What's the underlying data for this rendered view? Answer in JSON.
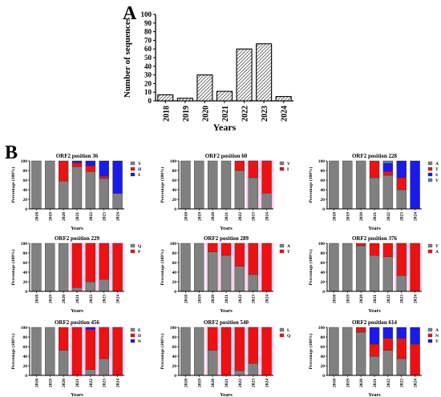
{
  "panel_a": {
    "label": "A",
    "chart_data": {
      "type": "bar",
      "categories": [
        "2018",
        "2019",
        "2020",
        "2021",
        "2022",
        "2023",
        "2024"
      ],
      "values": [
        7,
        3,
        30,
        11,
        60,
        66,
        5
      ],
      "xlabel": "Years",
      "ylabel": "Number of sequences",
      "ylim": [
        0,
        100
      ],
      "yticks": [
        "0",
        "10",
        "20",
        "30",
        "40",
        "50",
        "60",
        "70",
        "80",
        "90",
        "100"
      ],
      "fill": "hatched gray"
    }
  },
  "panel_b": {
    "label": "B",
    "chart_data": [
      {
        "type": "bar",
        "title": "ORF2 position 36",
        "xlabel": "Years",
        "ylabel": "Percentage (100%)",
        "categories": [
          "2018",
          "2019",
          "2020",
          "2021",
          "2022",
          "2023",
          "2024"
        ],
        "yticks": [
          "0",
          "20",
          "40",
          "60",
          "80",
          "100"
        ],
        "ylim": [
          0,
          100
        ],
        "highlight": [],
        "series": [
          {
            "name": "Y",
            "color": "#808080",
            "values": [
              100,
              100,
              58,
              88,
              78,
              63,
              32
            ]
          },
          {
            "name": "H",
            "color": "#ee1111",
            "values": [
              0,
              0,
              42,
              8,
              12,
              5,
              0
            ]
          },
          {
            "name": "S",
            "color": "#1a1aee",
            "values": [
              0,
              0,
              0,
              4,
              10,
              32,
              68
            ]
          }
        ]
      },
      {
        "type": "bar",
        "title": "ORF2 position 60",
        "xlabel": "Years",
        "ylabel": "Percentage (100%)",
        "categories": [
          "2018",
          "2019",
          "2020",
          "2021",
          "2022",
          "2023",
          "2024"
        ],
        "yticks": [
          "0",
          "20",
          "40",
          "60",
          "80",
          "100"
        ],
        "ylim": [
          0,
          100
        ],
        "highlight": [
          [
            5,
            6
          ]
        ],
        "series": [
          {
            "name": "V",
            "color": "#808080",
            "values": [
              100,
              100,
              100,
              100,
              80,
              65,
              33
            ]
          },
          {
            "name": "I",
            "color": "#ee1111",
            "values": [
              0,
              0,
              0,
              0,
              20,
              35,
              67
            ]
          }
        ]
      },
      {
        "type": "bar",
        "title": "ORF2 position 228",
        "xlabel": "Years",
        "ylabel": "Percentage (100%)",
        "categories": [
          "2018",
          "2019",
          "2020",
          "2021",
          "2022",
          "2023",
          "2024"
        ],
        "yticks": [
          "0",
          "20",
          "40",
          "60",
          "80",
          "100"
        ],
        "ylim": [
          0,
          100
        ],
        "highlight": [],
        "series": [
          {
            "name": "A",
            "color": "#808080",
            "values": [
              100,
              100,
              100,
              65,
              70,
              40,
              0
            ]
          },
          {
            "name": "T",
            "color": "#ee1111",
            "values": [
              0,
              0,
              0,
              35,
              8,
              25,
              0
            ]
          },
          {
            "name": "S",
            "color": "#1a1aee",
            "values": [
              0,
              0,
              0,
              0,
              17,
              35,
              100
            ]
          },
          {
            "name": "V",
            "color": "#4f81bd",
            "values": [
              0,
              0,
              0,
              0,
              5,
              0,
              0
            ]
          }
        ]
      },
      {
        "type": "bar",
        "title": "ORF2 position 229",
        "xlabel": "Years",
        "ylabel": "Percentage (100%)",
        "categories": [
          "2018",
          "2019",
          "2020",
          "2021",
          "2022",
          "2023",
          "2024"
        ],
        "yticks": [
          "0",
          "20",
          "40",
          "60",
          "80",
          "100"
        ],
        "ylim": [
          0,
          100
        ],
        "highlight": [
          [
            3,
            6
          ]
        ],
        "series": [
          {
            "name": "Q",
            "color": "#808080",
            "values": [
              100,
              100,
              100,
              8,
              20,
              25,
              0
            ]
          },
          {
            "name": "P",
            "color": "#ee1111",
            "values": [
              0,
              0,
              0,
              92,
              80,
              75,
              100
            ]
          }
        ]
      },
      {
        "type": "bar",
        "title": "ORF2 position 289",
        "xlabel": "Years",
        "ylabel": "Percentage (100%)",
        "categories": [
          "2018",
          "2019",
          "2020",
          "2021",
          "2022",
          "2023",
          "2024"
        ],
        "yticks": [
          "0",
          "20",
          "40",
          "60",
          "80",
          "100"
        ],
        "ylim": [
          0,
          100
        ],
        "highlight": [
          [
            2,
            6
          ]
        ],
        "series": [
          {
            "name": "A",
            "color": "#808080",
            "values": [
              100,
              100,
              82,
              75,
              52,
              35,
              0
            ]
          },
          {
            "name": "T",
            "color": "#ee1111",
            "values": [
              0,
              0,
              18,
              25,
              48,
              65,
              100
            ]
          }
        ]
      },
      {
        "type": "bar",
        "title": "ORF2 position 376",
        "xlabel": "Years",
        "ylabel": "Percentage (100%)",
        "categories": [
          "2018",
          "2019",
          "2020",
          "2021",
          "2022",
          "2023",
          "2024"
        ],
        "yticks": [
          "0",
          "20",
          "40",
          "60",
          "80",
          "100"
        ],
        "ylim": [
          0,
          100
        ],
        "highlight": [
          [
            5,
            6
          ]
        ],
        "series": [
          {
            "name": "T",
            "color": "#808080",
            "values": [
              100,
              100,
              95,
              75,
              72,
              33,
              0
            ]
          },
          {
            "name": "A",
            "color": "#ee1111",
            "values": [
              0,
              0,
              5,
              25,
              28,
              67,
              100
            ]
          }
        ]
      },
      {
        "type": "bar",
        "title": "ORF2 position 456",
        "xlabel": "Years",
        "ylabel": "Percentage (100%)",
        "categories": [
          "2018",
          "2019",
          "2020",
          "2021",
          "2022",
          "2023",
          "2024"
        ],
        "yticks": [
          "0",
          "20",
          "40",
          "60",
          "80",
          "100"
        ],
        "ylim": [
          0,
          100
        ],
        "highlight": [
          [
            3,
            6
          ]
        ],
        "series": [
          {
            "name": "E",
            "color": "#808080",
            "values": [
              100,
              100,
              52,
              0,
              12,
              35,
              0
            ]
          },
          {
            "name": "D",
            "color": "#ee1111",
            "values": [
              0,
              0,
              48,
              100,
              84,
              65,
              100
            ]
          },
          {
            "name": "N",
            "color": "#1a1aee",
            "values": [
              0,
              0,
              0,
              0,
              4,
              0,
              0
            ]
          }
        ]
      },
      {
        "type": "bar",
        "title": "ORF2 position 540",
        "xlabel": "Years",
        "ylabel": "Percentage (100%)",
        "categories": [
          "2018",
          "2019",
          "2020",
          "2021",
          "2022",
          "2023",
          "2024"
        ],
        "yticks": [
          "0",
          "20",
          "40",
          "60",
          "80",
          "100"
        ],
        "ylim": [
          0,
          100
        ],
        "highlight": [
          [
            2,
            6
          ]
        ],
        "series": [
          {
            "name": "L",
            "color": "#808080",
            "values": [
              100,
              100,
              52,
              0,
              10,
              25,
              0
            ]
          },
          {
            "name": "Q",
            "color": "#ee1111",
            "values": [
              0,
              0,
              48,
              100,
              90,
              75,
              100
            ]
          }
        ]
      },
      {
        "type": "bar",
        "title": "ORF2 position 614",
        "xlabel": "Years",
        "ylabel": "Percentage (100%)",
        "categories": [
          "2018",
          "2019",
          "2020",
          "2021",
          "2022",
          "2023",
          "2024"
        ],
        "yticks": [
          "0",
          "20",
          "40",
          "60",
          "80",
          "100"
        ],
        "ylim": [
          0,
          100
        ],
        "highlight": [],
        "series": [
          {
            "name": "A",
            "color": "#808080",
            "values": [
              100,
              100,
              90,
              40,
              52,
              35,
              0
            ]
          },
          {
            "name": "N",
            "color": "#ee1111",
            "values": [
              0,
              0,
              10,
              25,
              25,
              42,
              65
            ]
          },
          {
            "name": "T",
            "color": "#1a1aee",
            "values": [
              0,
              0,
              0,
              35,
              23,
              23,
              35
            ]
          }
        ]
      }
    ]
  }
}
